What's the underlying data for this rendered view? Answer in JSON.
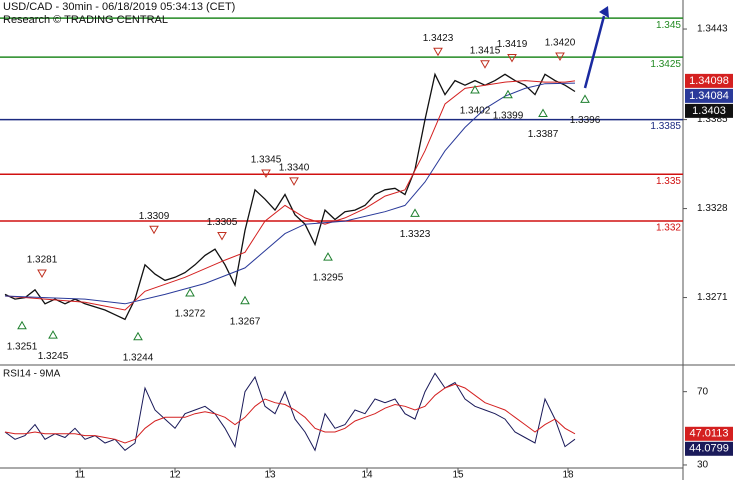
{
  "chart_data": [
    {
      "type": "line",
      "title": "USD/CAD - 30min - 06/18/2019 05:34:13 (CET)",
      "subtitle": "Research © TRADING CENTRAL",
      "xlim": [
        -0.5,
        67.8
      ],
      "ylim": [
        1.32278,
        1.34616
      ],
      "yticks": [
        1.3443,
        1.3385,
        1.3328,
        1.3271
      ],
      "levels": [
        {
          "value": 1.345,
          "color": "#238a23"
        },
        {
          "value": 1.3425,
          "color": "#238a23"
        },
        {
          "value": 1.3385,
          "color": "#1c2a80"
        },
        {
          "value": 1.335,
          "color": "#d01010"
        },
        {
          "value": 1.332,
          "color": "#d01010"
        }
      ],
      "series": [
        {
          "color": "#111111",
          "x": [
            0,
            1,
            2,
            3,
            4,
            5,
            6,
            7,
            8,
            9,
            10,
            11,
            12,
            13,
            14,
            15,
            16,
            17,
            18,
            19,
            20,
            21,
            22,
            23,
            24,
            25,
            26,
            27,
            28,
            29,
            30,
            31,
            32,
            33,
            34,
            35,
            36,
            37,
            38,
            39,
            40,
            41,
            42,
            43,
            44,
            45,
            46,
            47,
            48,
            49,
            50,
            51,
            52,
            53,
            54,
            55,
            56,
            57
          ],
          "values": [
            1.3273,
            1.327,
            1.3271,
            1.3276,
            1.3267,
            1.327,
            1.3267,
            1.327,
            1.3267,
            1.3265,
            1.3263,
            1.326,
            1.3257,
            1.327,
            1.3292,
            1.3286,
            1.3282,
            1.3284,
            1.3287,
            1.3292,
            1.3298,
            1.3302,
            1.3292,
            1.3279,
            1.3314,
            1.334,
            1.3334,
            1.3327,
            1.3337,
            1.3324,
            1.3318,
            1.3305,
            1.3327,
            1.3321,
            1.3326,
            1.3327,
            1.333,
            1.3337,
            1.334,
            1.3341,
            1.3337,
            1.3353,
            1.3385,
            1.3414,
            1.3401,
            1.341,
            1.3407,
            1.341,
            1.3407,
            1.341,
            1.3414,
            1.341,
            1.3407,
            1.3401,
            1.3414,
            1.341,
            1.3407,
            1.3403
          ]
        },
        {
          "color": "#d42020",
          "x": [
            0,
            4,
            8,
            12,
            14,
            18,
            22,
            24,
            26,
            28,
            30,
            32,
            34,
            36,
            38,
            40,
            42,
            44,
            46,
            48,
            50,
            52,
            54,
            56,
            57
          ],
          "values": [
            1.3272,
            1.327,
            1.3268,
            1.3263,
            1.3275,
            1.3284,
            1.3295,
            1.33,
            1.332,
            1.333,
            1.3322,
            1.3318,
            1.3322,
            1.3328,
            1.3336,
            1.334,
            1.3365,
            1.3395,
            1.3405,
            1.3407,
            1.3409,
            1.341,
            1.3409,
            1.3409,
            1.34098
          ]
        },
        {
          "color": "#2a3a9a",
          "x": [
            0,
            4,
            8,
            12,
            16,
            20,
            24,
            28,
            30,
            34,
            38,
            40,
            42,
            44,
            46,
            48,
            50,
            52,
            54,
            57
          ],
          "values": [
            1.3272,
            1.3271,
            1.327,
            1.3267,
            1.3273,
            1.328,
            1.329,
            1.3312,
            1.3318,
            1.332,
            1.3326,
            1.333,
            1.3345,
            1.3365,
            1.338,
            1.3392,
            1.34,
            1.3405,
            1.3408,
            1.34084
          ]
        }
      ],
      "annotations": [
        {
          "value": 1.3423,
          "x": 43.3,
          "marker": "down"
        },
        {
          "value": 1.3415,
          "x": 48,
          "marker": "down"
        },
        {
          "value": 1.3419,
          "x": 50.7,
          "marker": "down"
        },
        {
          "value": 1.342,
          "label": "1.3420",
          "x": 55.5,
          "marker": "down"
        },
        {
          "value": 1.3345,
          "x": 26.1,
          "marker": "down"
        },
        {
          "value": 1.334,
          "label": "1.3340",
          "x": 28.9,
          "marker": "down"
        },
        {
          "value": 1.3309,
          "x": 14.9,
          "marker": "down"
        },
        {
          "value": 1.3305,
          "x": 21.7,
          "marker": "down"
        },
        {
          "value": 1.3281,
          "x": 3.7,
          "marker": "down"
        },
        {
          "value": 1.3402,
          "x": 47,
          "marker": "up"
        },
        {
          "value": 1.3399,
          "x": 50.3,
          "marker": "up"
        },
        {
          "value": 1.3387,
          "x": 53.8,
          "marker": "up"
        },
        {
          "value": 1.3396,
          "x": 58,
          "marker": "up"
        },
        {
          "value": 1.3323,
          "x": 41,
          "marker": "up"
        },
        {
          "value": 1.3295,
          "x": 32.3,
          "marker": "up"
        },
        {
          "value": 1.3272,
          "x": 18.5,
          "marker": "up"
        },
        {
          "value": 1.3267,
          "x": 24,
          "marker": "up"
        },
        {
          "value": 1.3251,
          "x": 1.7,
          "marker": "up"
        },
        {
          "value": 1.3245,
          "x": 4.8,
          "marker": "up"
        },
        {
          "value": 1.3244,
          "x": 13.3,
          "marker": "up"
        }
      ]
    },
    {
      "type": "line",
      "title": "RSI14 - 9MA",
      "xlim": [
        -0.5,
        67.8
      ],
      "ylim": [
        27.8,
        84
      ],
      "yticks": [
        70,
        30
      ],
      "xticks": [
        {
          "value": 7.5,
          "label": "11"
        },
        {
          "value": 17,
          "label": "12"
        },
        {
          "value": 26.5,
          "label": "13"
        },
        {
          "value": 36.2,
          "label": "14"
        },
        {
          "value": 45.3,
          "label": "15"
        },
        {
          "value": 56.3,
          "label": "18"
        }
      ],
      "series": [
        {
          "color": "#1a1a5a",
          "x": [
            0,
            1,
            2,
            3,
            4,
            5,
            6,
            7,
            8,
            9,
            10,
            11,
            12,
            13,
            14,
            15,
            16,
            17,
            18,
            19,
            20,
            21,
            22,
            23,
            24,
            25,
            26,
            27,
            28,
            29,
            30,
            31,
            32,
            33,
            34,
            35,
            36,
            37,
            38,
            39,
            40,
            41,
            42,
            43,
            44,
            45,
            46,
            47,
            48,
            49,
            50,
            51,
            52,
            53,
            54,
            55,
            56,
            57
          ],
          "values": [
            48,
            44,
            46,
            52,
            44,
            47,
            45,
            50,
            44,
            46,
            42,
            44,
            38,
            42,
            72,
            60,
            55,
            50,
            58,
            60,
            62,
            58,
            50,
            40,
            70,
            78,
            62,
            58,
            70,
            55,
            48,
            38,
            58,
            50,
            52,
            60,
            58,
            66,
            64,
            66,
            58,
            55,
            70,
            80,
            72,
            75,
            66,
            62,
            60,
            58,
            55,
            48,
            45,
            42,
            66,
            55,
            40,
            44.0799
          ]
        },
        {
          "color": "#d42020",
          "x": [
            0,
            1,
            2,
            3,
            4,
            5,
            6,
            7,
            8,
            9,
            10,
            11,
            12,
            13,
            14,
            15,
            16,
            17,
            18,
            19,
            20,
            21,
            22,
            23,
            24,
            25,
            26,
            27,
            28,
            29,
            30,
            31,
            32,
            33,
            34,
            35,
            36,
            37,
            38,
            39,
            40,
            41,
            42,
            43,
            44,
            45,
            46,
            47,
            48,
            49,
            50,
            51,
            52,
            53,
            54,
            55,
            56,
            57
          ],
          "values": [
            48,
            47,
            47,
            48,
            47,
            47,
            47,
            47,
            46,
            46,
            45,
            44,
            42,
            44,
            50,
            54,
            56,
            56,
            56,
            58,
            59,
            58,
            56,
            52,
            56,
            62,
            66,
            64,
            63,
            60,
            56,
            50,
            48,
            48,
            50,
            54,
            56,
            58,
            61,
            63,
            62,
            60,
            62,
            68,
            72,
            74,
            72,
            68,
            64,
            62,
            60,
            56,
            52,
            48,
            52,
            55,
            50,
            47.0113
          ]
        }
      ]
    }
  ]
}
